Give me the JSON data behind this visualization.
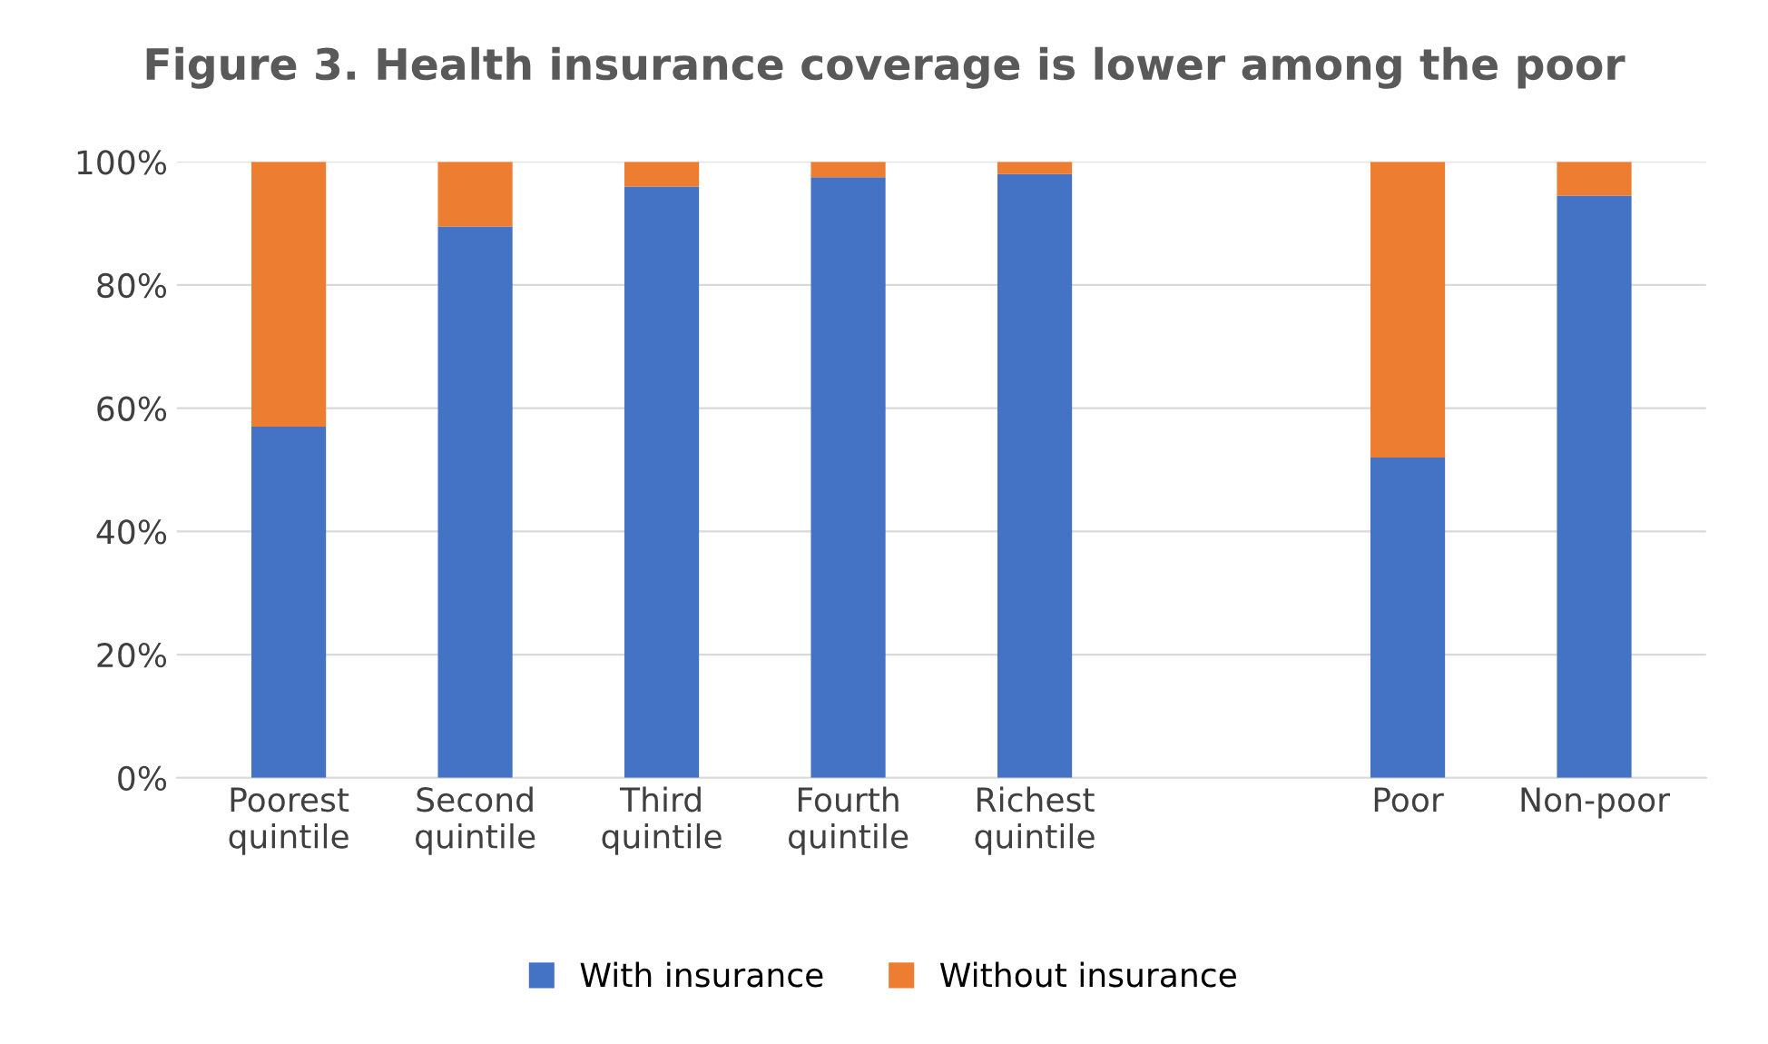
{
  "chart_data": {
    "type": "bar",
    "title": "Figure 3. Health insurance coverage is lower among the poor",
    "categories": [
      "Poorest\nquintile",
      "Second\nquintile",
      "Third\nquintile",
      "Fourth\nquintile",
      "Richest\nquintile",
      null,
      "Poor",
      "Non-poor"
    ],
    "stacked": true,
    "series": [
      {
        "name": "With insurance",
        "color": "#4472c4",
        "values": [
          57,
          89.5,
          96,
          97.5,
          98,
          null,
          52,
          94.5
        ]
      },
      {
        "name": "Without insurance",
        "color": "#ed7d31",
        "values": [
          43,
          10.5,
          4,
          2.5,
          2,
          null,
          48,
          5.5
        ]
      }
    ],
    "ylim": [
      0,
      100
    ],
    "yticks": [
      {
        "value": 0,
        "label": "0%"
      },
      {
        "value": 20,
        "label": "20%"
      },
      {
        "value": 40,
        "label": "40%"
      },
      {
        "value": 60,
        "label": "60%"
      },
      {
        "value": 80,
        "label": "80%"
      },
      {
        "value": 100,
        "label": "100%"
      }
    ],
    "grid": "y",
    "legend": "bottom"
  }
}
